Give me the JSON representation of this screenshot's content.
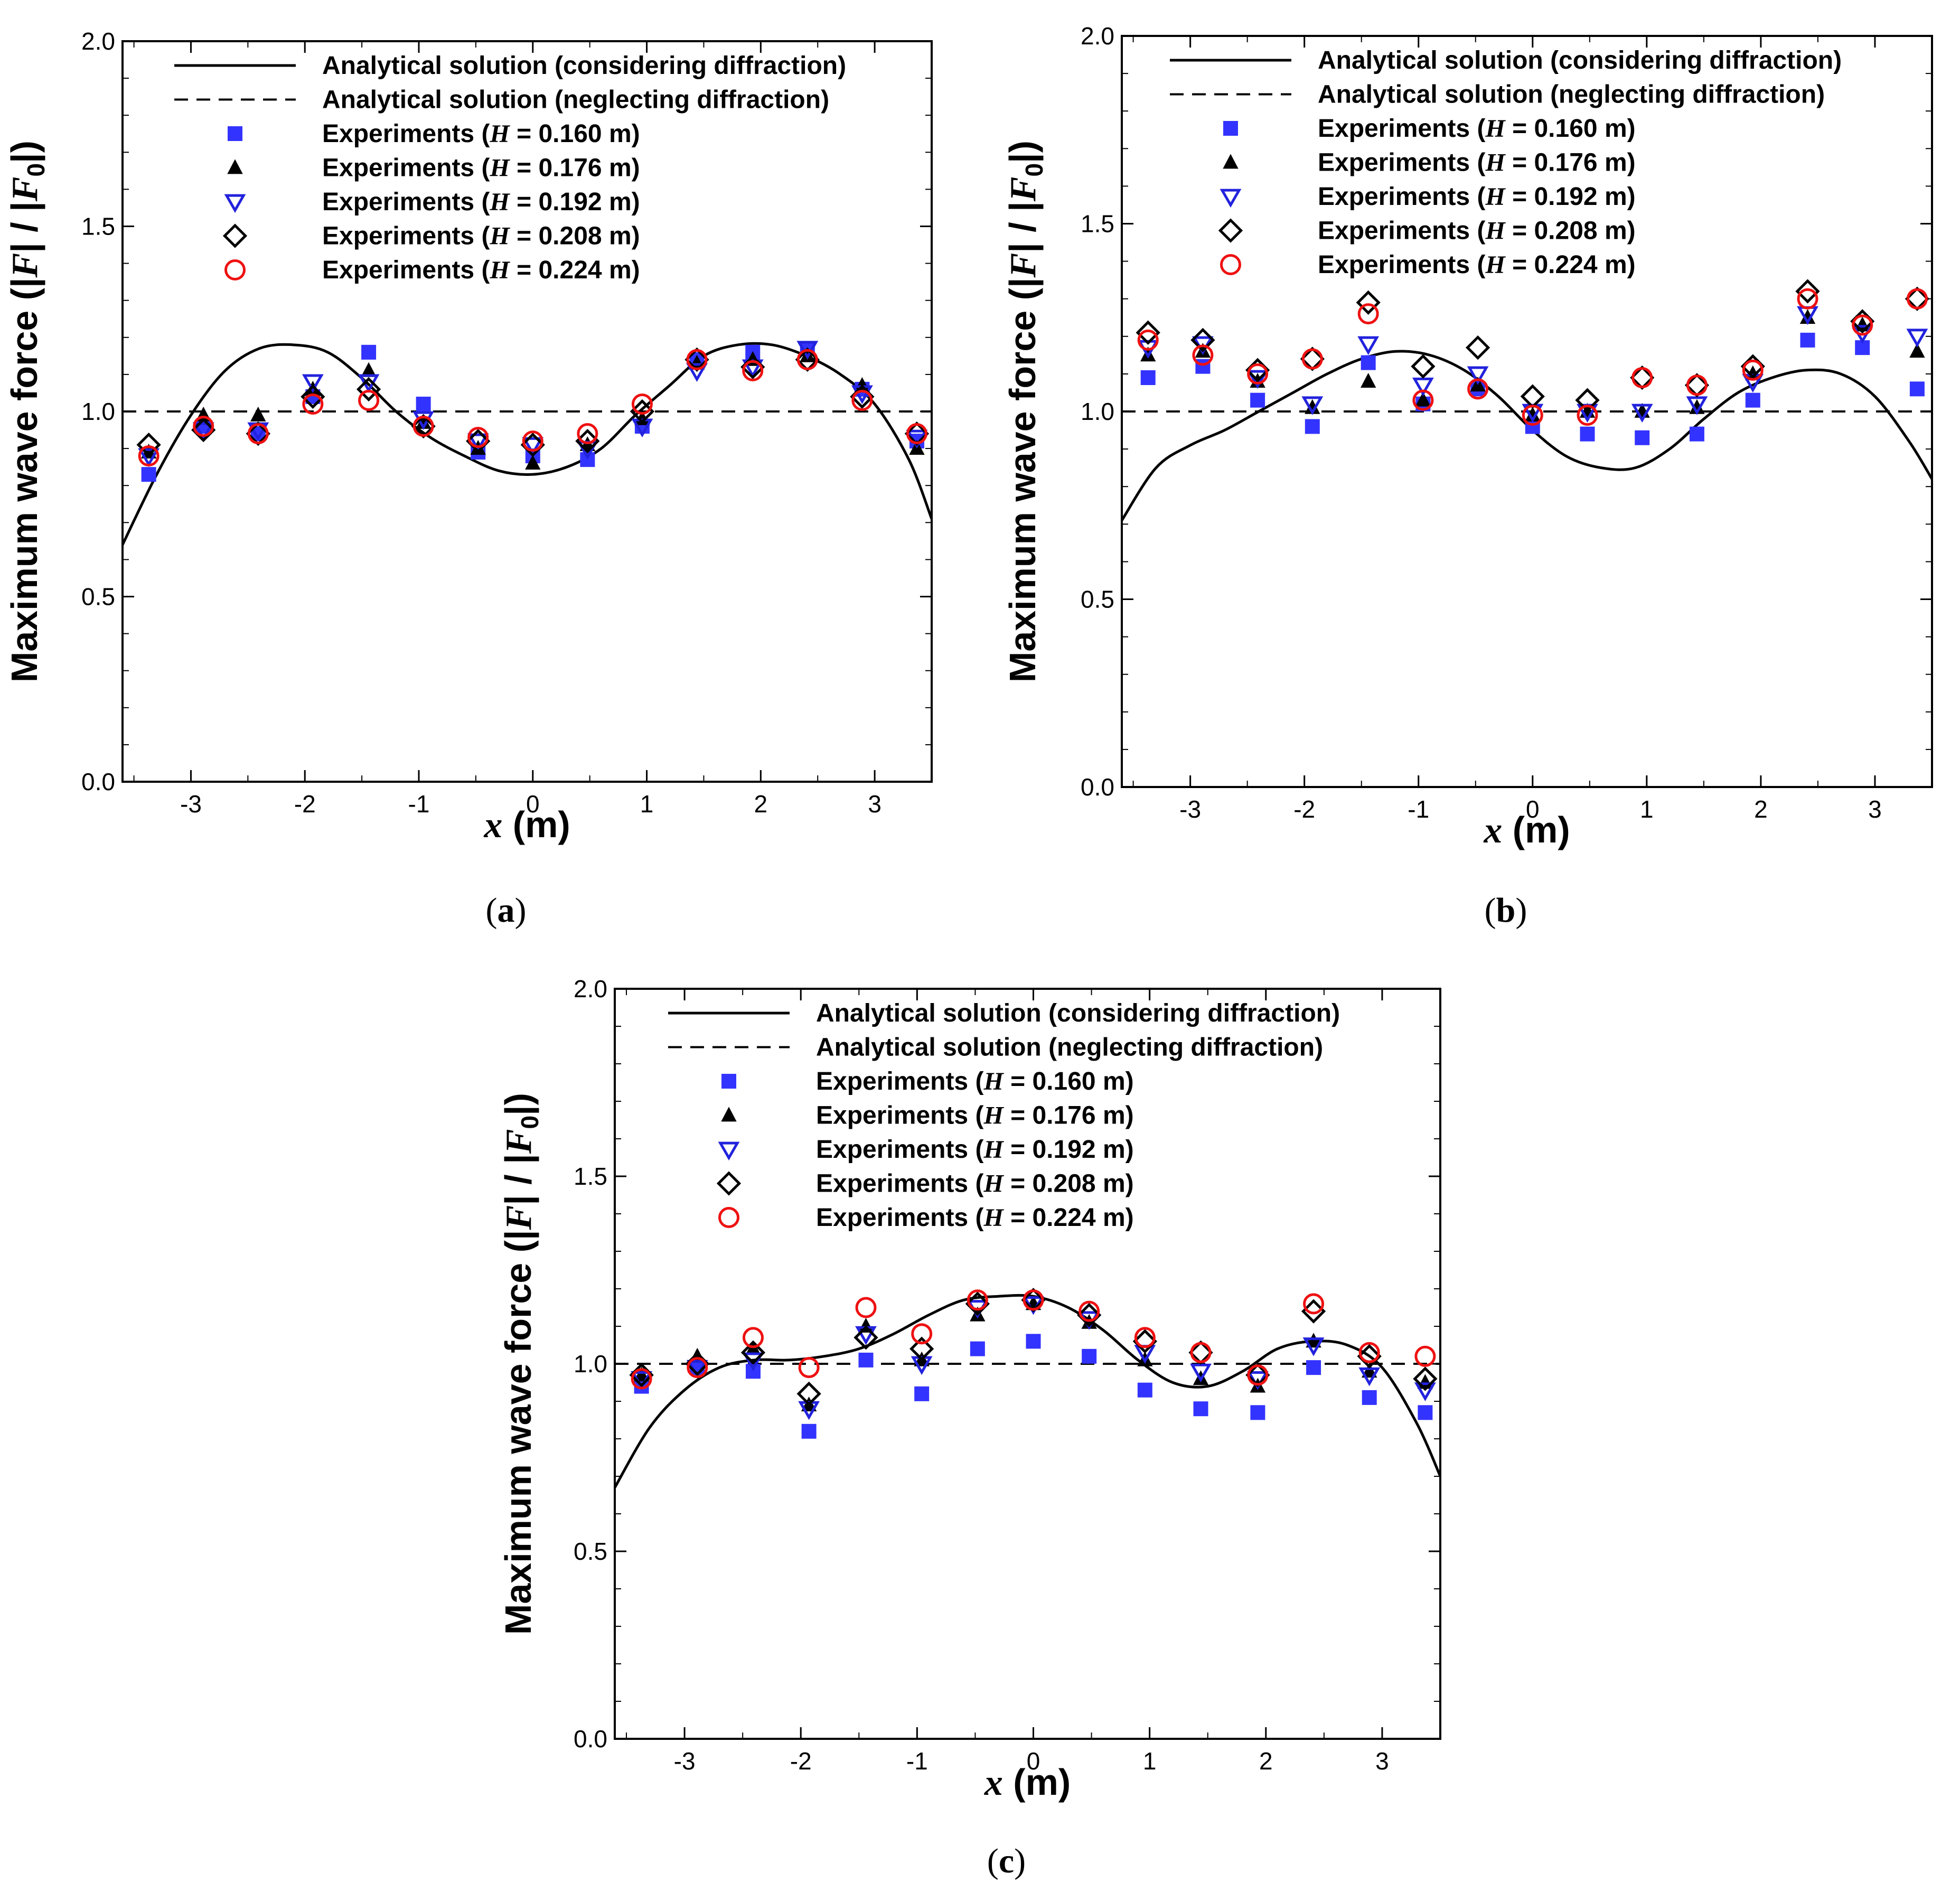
{
  "figure": {
    "panel_labels": [
      "a",
      "b",
      "c"
    ]
  },
  "chart_data": [
    {
      "type": "scatter",
      "panel": "a",
      "xlabel_var": "x",
      "xlabel_unit": "(m)",
      "ylabel_prefix": "Maximum wave force (|",
      "ylabel_f": "F",
      "ylabel_mid": "| / |",
      "ylabel_f0": "F",
      "ylabel_sub": "0",
      "ylabel_suffix": "|)",
      "xlim": [
        -3.6,
        3.5
      ],
      "ylim": [
        0,
        2.0
      ],
      "xticks": [
        -3,
        -2,
        -1,
        0,
        1,
        2,
        3
      ],
      "xtick_labels": [
        "-3",
        "-2",
        "-1",
        "0",
        "1",
        "2",
        "3"
      ],
      "yticks": [
        0,
        0.5,
        1.0,
        1.5,
        2.0
      ],
      "ytick_labels": [
        "0.0",
        "0.5",
        "1.0",
        "1.5",
        "2.0"
      ],
      "legend_position": "top",
      "x": [
        -3.37,
        -2.89,
        -2.41,
        -1.93,
        -1.44,
        -0.96,
        -0.48,
        0.0,
        0.48,
        0.96,
        1.44,
        1.93,
        2.41,
        2.89,
        3.37
      ],
      "lines": [
        {
          "name": "Analytical solution (considering diffraction)",
          "style": "solid",
          "color": "#000000",
          "x": [
            -3.6,
            -3.3,
            -3.0,
            -2.7,
            -2.4,
            -2.1,
            -1.8,
            -1.5,
            -1.2,
            -0.9,
            -0.6,
            -0.3,
            0.0,
            0.3,
            0.6,
            0.9,
            1.2,
            1.5,
            1.8,
            2.1,
            2.4,
            2.7,
            3.0,
            3.3,
            3.5
          ],
          "y": [
            0.64,
            0.83,
            0.99,
            1.11,
            1.17,
            1.18,
            1.16,
            1.09,
            1.0,
            0.93,
            0.88,
            0.84,
            0.83,
            0.85,
            0.9,
            0.99,
            1.07,
            1.15,
            1.18,
            1.18,
            1.15,
            1.1,
            1.02,
            0.87,
            0.71
          ]
        },
        {
          "name": "Analytical solution (neglecting diffraction)",
          "style": "dashed",
          "color": "#000000",
          "x": [
            -3.6,
            3.5
          ],
          "y": [
            1.0,
            1.0
          ]
        }
      ],
      "series": [
        {
          "name": "Experiments (H = 0.160 m)",
          "label_prefix": "Experiments (",
          "label_var": "H",
          "label_value": " = 0.160 m)",
          "marker": "filled-square",
          "color": "#3333ff",
          "values": [
            0.83,
            0.96,
            0.94,
            1.04,
            1.16,
            1.02,
            0.89,
            0.88,
            0.87,
            0.96,
            1.14,
            1.16,
            1.17,
            1.06,
            0.92
          ]
        },
        {
          "name": "Experiments (H = 0.176 m)",
          "label_prefix": "Experiments (",
          "label_var": "H",
          "label_value": " = 0.176 m)",
          "marker": "filled-triangle",
          "color": "#000000",
          "values": [
            0.89,
            0.99,
            0.99,
            1.06,
            1.11,
            0.97,
            0.9,
            0.86,
            0.91,
            0.98,
            1.13,
            1.14,
            1.15,
            1.07,
            0.9
          ]
        },
        {
          "name": "Experiments (H = 0.192 m)",
          "label_prefix": "Experiments (",
          "label_var": "H",
          "label_value": " = 0.192 m)",
          "marker": "open-triangle-down",
          "color": "#2222dd",
          "values": [
            0.88,
            0.95,
            0.95,
            1.08,
            1.08,
            0.98,
            0.92,
            0.91,
            0.9,
            0.96,
            1.11,
            1.12,
            1.17,
            1.05,
            0.93
          ]
        },
        {
          "name": "Experiments (H = 0.208 m)",
          "label_prefix": "Experiments (",
          "label_var": "H",
          "label_value": " = 0.208 m)",
          "marker": "open-diamond",
          "color": "#000000",
          "values": [
            0.91,
            0.95,
            0.94,
            1.04,
            1.06,
            0.96,
            0.92,
            0.91,
            0.92,
            1.0,
            1.14,
            1.12,
            1.14,
            1.04,
            0.94
          ]
        },
        {
          "name": "Experiments (H = 0.224 m)",
          "label_prefix": "Experiments (",
          "label_var": "H",
          "label_value": " = 0.224 m)",
          "marker": "open-circle",
          "color": "#ee1111",
          "values": [
            0.88,
            0.96,
            0.94,
            1.02,
            1.03,
            0.96,
            0.93,
            0.92,
            0.94,
            1.02,
            1.14,
            1.11,
            1.14,
            1.03,
            0.94
          ]
        }
      ]
    },
    {
      "type": "scatter",
      "panel": "b",
      "xlabel_var": "x",
      "xlabel_unit": "(m)",
      "ylabel_prefix": "Maximum wave force (|",
      "ylabel_f": "F",
      "ylabel_mid": "| / |",
      "ylabel_f0": "F",
      "ylabel_sub": "0",
      "ylabel_suffix": "|)",
      "xlim": [
        -3.6,
        3.5
      ],
      "ylim": [
        0,
        2.0
      ],
      "xticks": [
        -3,
        -2,
        -1,
        0,
        1,
        2,
        3
      ],
      "xtick_labels": [
        "-3",
        "-2",
        "-1",
        "0",
        "1",
        "2",
        "3"
      ],
      "yticks": [
        0,
        0.5,
        1.0,
        1.5,
        2.0
      ],
      "ytick_labels": [
        "0.0",
        "0.5",
        "1.0",
        "1.5",
        "2.0"
      ],
      "legend_position": "top",
      "x": [
        -3.37,
        -2.89,
        -2.41,
        -1.93,
        -1.44,
        -0.96,
        -0.48,
        0.0,
        0.48,
        0.96,
        1.44,
        1.93,
        2.41,
        2.89,
        3.37
      ],
      "lines": [
        {
          "name": "Analytical solution (considering diffraction)",
          "style": "solid",
          "color": "#000000",
          "x": [
            -3.6,
            -3.3,
            -3.0,
            -2.7,
            -2.4,
            -2.1,
            -1.8,
            -1.5,
            -1.2,
            -0.9,
            -0.6,
            -0.3,
            0.0,
            0.3,
            0.6,
            0.9,
            1.2,
            1.5,
            1.8,
            2.1,
            2.4,
            2.7,
            3.0,
            3.3,
            3.5
          ],
          "y": [
            0.71,
            0.85,
            0.91,
            0.95,
            1.0,
            1.05,
            1.1,
            1.14,
            1.16,
            1.15,
            1.11,
            1.04,
            0.95,
            0.88,
            0.85,
            0.85,
            0.9,
            0.98,
            1.05,
            1.09,
            1.11,
            1.1,
            1.04,
            0.92,
            0.82
          ]
        },
        {
          "name": "Analytical solution (neglecting diffraction)",
          "style": "dashed",
          "color": "#000000",
          "x": [
            -3.6,
            3.5
          ],
          "y": [
            1.0,
            1.0
          ]
        }
      ],
      "series": [
        {
          "name": "Experiments (H = 0.160 m)",
          "label_prefix": "Experiments (",
          "label_var": "H",
          "label_value": " = 0.160 m)",
          "marker": "filled-square",
          "color": "#3333ff",
          "values": [
            1.09,
            1.12,
            1.03,
            0.96,
            1.13,
            1.02,
            1.06,
            0.96,
            0.94,
            0.93,
            0.94,
            1.03,
            1.19,
            1.17,
            1.06
          ]
        },
        {
          "name": "Experiments (H = 0.176 m)",
          "label_prefix": "Experiments (",
          "label_var": "H",
          "label_value": " = 0.176 m)",
          "marker": "filled-triangle",
          "color": "#000000",
          "values": [
            1.15,
            1.16,
            1.08,
            1.01,
            1.08,
            1.03,
            1.07,
            0.99,
            1.0,
            1.0,
            1.01,
            1.1,
            1.25,
            1.23,
            1.16
          ]
        },
        {
          "name": "Experiments (H = 0.192 m)",
          "label_prefix": "Experiments (",
          "label_var": "H",
          "label_value": " = 0.192 m)",
          "marker": "open-triangle-down",
          "color": "#2222dd",
          "values": [
            1.17,
            1.18,
            1.09,
            1.02,
            1.18,
            1.07,
            1.1,
            1.0,
            1.0,
            1.0,
            1.02,
            1.08,
            1.26,
            1.21,
            1.2
          ]
        },
        {
          "name": "Experiments (H = 0.208 m)",
          "label_prefix": "Experiments (",
          "label_var": "H",
          "label_value": " = 0.208 m)",
          "marker": "open-diamond",
          "color": "#000000",
          "values": [
            1.21,
            1.19,
            1.11,
            1.14,
            1.29,
            1.12,
            1.17,
            1.04,
            1.03,
            1.09,
            1.07,
            1.12,
            1.32,
            1.24,
            1.3
          ]
        },
        {
          "name": "Experiments (H = 0.224 m)",
          "label_prefix": "Experiments (",
          "label_var": "H",
          "label_value": " = 0.224 m)",
          "marker": "open-circle",
          "color": "#ee1111",
          "values": [
            1.19,
            1.15,
            1.1,
            1.14,
            1.26,
            1.03,
            1.06,
            0.99,
            0.99,
            1.09,
            1.07,
            1.11,
            1.3,
            1.23,
            1.3
          ]
        }
      ]
    },
    {
      "type": "scatter",
      "panel": "c",
      "xlabel_var": "x",
      "xlabel_unit": "(m)",
      "ylabel_prefix": "Maximum wave force (|",
      "ylabel_f": "F",
      "ylabel_mid": "| / |",
      "ylabel_f0": "F",
      "ylabel_sub": "0",
      "ylabel_suffix": "|)",
      "xlim": [
        -3.6,
        3.5
      ],
      "ylim": [
        0,
        2.0
      ],
      "xticks": [
        -3,
        -2,
        -1,
        0,
        1,
        2,
        3
      ],
      "xtick_labels": [
        "-3",
        "-2",
        "-1",
        "0",
        "1",
        "2",
        "3"
      ],
      "yticks": [
        0,
        0.5,
        1.0,
        1.5,
        2.0
      ],
      "ytick_labels": [
        "0.0",
        "0.5",
        "1.0",
        "1.5",
        "2.0"
      ],
      "legend_position": "top",
      "x": [
        -3.37,
        -2.89,
        -2.41,
        -1.93,
        -1.44,
        -0.96,
        -0.48,
        0.0,
        0.48,
        0.96,
        1.44,
        1.93,
        2.41,
        2.89,
        3.37
      ],
      "lines": [
        {
          "name": "Analytical solution (considering diffraction)",
          "style": "solid",
          "color": "#000000",
          "x": [
            -3.6,
            -3.3,
            -3.0,
            -2.7,
            -2.4,
            -2.1,
            -1.8,
            -1.5,
            -1.2,
            -0.9,
            -0.6,
            -0.3,
            0.0,
            0.3,
            0.6,
            0.9,
            1.2,
            1.5,
            1.8,
            2.1,
            2.4,
            2.7,
            3.0,
            3.3,
            3.5
          ],
          "y": [
            0.67,
            0.83,
            0.93,
            0.99,
            1.01,
            1.01,
            1.02,
            1.04,
            1.08,
            1.13,
            1.17,
            1.18,
            1.18,
            1.15,
            1.09,
            1.01,
            0.95,
            0.94,
            0.98,
            1.04,
            1.06,
            1.05,
            0.99,
            0.84,
            0.7
          ]
        },
        {
          "name": "Analytical solution (neglecting diffraction)",
          "style": "dashed",
          "color": "#000000",
          "x": [
            -3.6,
            3.5
          ],
          "y": [
            1.0,
            1.0
          ]
        }
      ],
      "series": [
        {
          "name": "Experiments (H = 0.160 m)",
          "label_prefix": "Experiments (",
          "label_var": "H",
          "label_value": " = 0.160 m)",
          "marker": "filled-square",
          "color": "#3333ff",
          "values": [
            0.94,
            0.99,
            0.98,
            0.82,
            1.01,
            0.92,
            1.04,
            1.06,
            1.02,
            0.93,
            0.88,
            0.87,
            0.99,
            0.91,
            0.87
          ]
        },
        {
          "name": "Experiments (H = 0.176 m)",
          "label_prefix": "Experiments (",
          "label_var": "H",
          "label_value": " = 0.176 m)",
          "marker": "filled-triangle",
          "color": "#000000",
          "values": [
            0.97,
            1.02,
            1.04,
            0.89,
            1.1,
            1.01,
            1.13,
            1.16,
            1.11,
            1.01,
            0.96,
            0.94,
            1.06,
            0.98,
            0.95
          ]
        },
        {
          "name": "Experiments (H = 0.192 m)",
          "label_prefix": "Experiments (",
          "label_var": "H",
          "label_value": " = 0.192 m)",
          "marker": "open-triangle-down",
          "color": "#2222dd",
          "values": [
            0.96,
            0.99,
            1.01,
            0.88,
            1.08,
            1.0,
            1.15,
            1.16,
            1.12,
            1.03,
            0.98,
            0.96,
            1.05,
            0.97,
            0.93
          ]
        },
        {
          "name": "Experiments (H = 0.208 m)",
          "label_prefix": "Experiments (",
          "label_var": "H",
          "label_value": " = 0.208 m)",
          "marker": "open-diamond",
          "color": "#000000",
          "values": [
            0.97,
            1.0,
            1.03,
            0.92,
            1.07,
            1.04,
            1.16,
            1.17,
            1.13,
            1.06,
            1.03,
            0.97,
            1.14,
            1.02,
            0.96
          ]
        },
        {
          "name": "Experiments (H = 0.224 m)",
          "label_prefix": "Experiments (",
          "label_var": "H",
          "label_value": " = 0.224 m)",
          "marker": "open-circle",
          "color": "#ee1111",
          "values": [
            0.96,
            0.99,
            1.07,
            0.99,
            1.15,
            1.08,
            1.17,
            1.17,
            1.14,
            1.07,
            1.03,
            0.97,
            1.16,
            1.03,
            1.02
          ]
        }
      ]
    }
  ]
}
